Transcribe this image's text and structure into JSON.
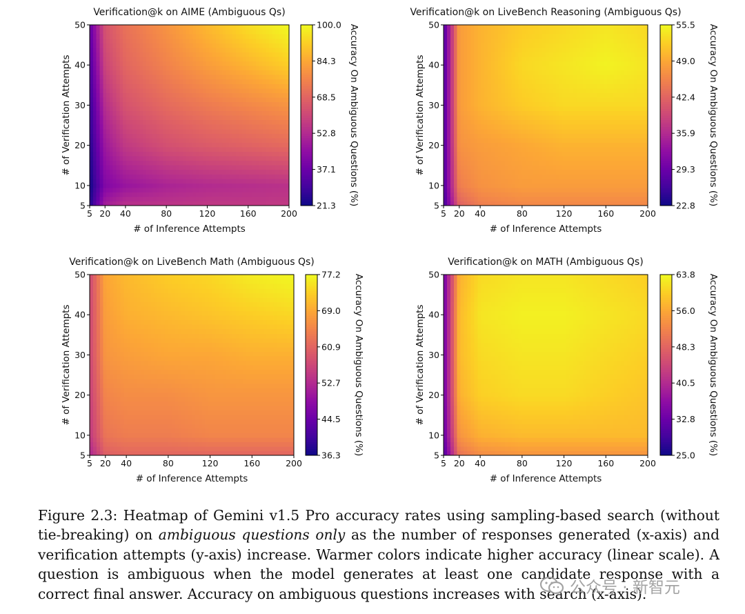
{
  "chart_data": [
    {
      "type": "heatmap",
      "title": "Verification@k on AIME (Ambiguous Qs)",
      "xlabel": "# of Inference Attempts",
      "ylabel": "# of Verification Attempts",
      "colorbar_label": "Accuracy On Ambiguous Questions (%)",
      "colormap": "plasma",
      "xlim": [
        5,
        200
      ],
      "ylim": [
        5,
        50
      ],
      "xticks": [
        5,
        20,
        40,
        80,
        120,
        160,
        200
      ],
      "yticks": [
        5,
        10,
        20,
        30,
        40,
        50
      ],
      "colorbar_ticks": [
        "21.3",
        "37.1",
        "52.8",
        "68.5",
        "84.3",
        "100.0"
      ],
      "vmin": 21.3,
      "vmax": 100.0,
      "x": [
        5,
        20,
        40,
        80,
        120,
        160,
        200
      ],
      "y": [
        5,
        10,
        20,
        30,
        40,
        50
      ],
      "z": [
        [
          24,
          50,
          55,
          56,
          57,
          57,
          57
        ],
        [
          22,
          42,
          47,
          51,
          53,
          54,
          55
        ],
        [
          25,
          48,
          57,
          63,
          66,
          68,
          70
        ],
        [
          28,
          54,
          64,
          70,
          74,
          77,
          80
        ],
        [
          32,
          60,
          69,
          76,
          82,
          87,
          92
        ],
        [
          36,
          64,
          72,
          80,
          88,
          95,
          100
        ]
      ]
    },
    {
      "type": "heatmap",
      "title": "Verification@k on LiveBench Reasoning (Ambiguous Qs)",
      "xlabel": "# of Inference Attempts",
      "ylabel": "# of Verification Attempts",
      "colorbar_label": "Accuracy On Ambiguous Questions (%)",
      "colormap": "plasma",
      "xlim": [
        5,
        200
      ],
      "ylim": [
        5,
        50
      ],
      "xticks": [
        5,
        20,
        40,
        80,
        120,
        160,
        200
      ],
      "yticks": [
        5,
        10,
        20,
        30,
        40,
        50
      ],
      "colorbar_ticks": [
        "22.8",
        "29.3",
        "35.9",
        "42.4",
        "49.0",
        "55.5"
      ],
      "vmin": 22.8,
      "vmax": 55.5,
      "x": [
        5,
        20,
        40,
        80,
        120,
        160,
        200
      ],
      "y": [
        5,
        10,
        20,
        30,
        40,
        50
      ],
      "z": [
        [
          26,
          42,
          45,
          46,
          46,
          46,
          46
        ],
        [
          27,
          45,
          47,
          48,
          48,
          48,
          48
        ],
        [
          27,
          47,
          48,
          49,
          50,
          50,
          50
        ],
        [
          27,
          48,
          50,
          52,
          53,
          53,
          53
        ],
        [
          27,
          48,
          50,
          53,
          54,
          55,
          54
        ],
        [
          27,
          48,
          50,
          52,
          53,
          54,
          53
        ]
      ]
    },
    {
      "type": "heatmap",
      "title": "Verification@k on LiveBench Math (Ambiguous Qs)",
      "xlabel": "# of Inference Attempts",
      "ylabel": "# of Verification Attempts",
      "colorbar_label": "Accuracy On Ambiguous Questions (%)",
      "colormap": "plasma",
      "xlim": [
        5,
        200
      ],
      "ylim": [
        5,
        50
      ],
      "xticks": [
        5,
        20,
        40,
        80,
        120,
        160,
        200
      ],
      "yticks": [
        5,
        10,
        20,
        30,
        40,
        50
      ],
      "colorbar_ticks": [
        "36.3",
        "44.5",
        "52.7",
        "60.9",
        "69.0",
        "77.2"
      ],
      "vmin": 36.3,
      "vmax": 77.2,
      "x": [
        5,
        20,
        40,
        80,
        120,
        160,
        200
      ],
      "y": [
        5,
        10,
        20,
        30,
        40,
        50
      ],
      "z": [
        [
          52,
          60,
          61,
          61,
          61,
          61,
          61
        ],
        [
          55,
          63,
          64,
          64,
          65,
          65,
          65
        ],
        [
          56,
          65,
          66,
          66,
          67,
          67,
          67
        ],
        [
          57,
          67,
          68,
          69,
          69,
          70,
          70
        ],
        [
          57,
          68,
          70,
          71,
          72,
          73,
          74
        ],
        [
          57,
          69,
          71,
          73,
          74,
          76,
          77
        ]
      ]
    },
    {
      "type": "heatmap",
      "title": "Verification@k on MATH (Ambiguous Qs)",
      "xlabel": "# of Inference Attempts",
      "ylabel": "# of Verification Attempts",
      "colorbar_label": "Accuracy On Ambiguous Questions (%)",
      "colormap": "plasma",
      "xlim": [
        5,
        200
      ],
      "ylim": [
        5,
        50
      ],
      "xticks": [
        5,
        20,
        40,
        80,
        120,
        160,
        200
      ],
      "yticks": [
        5,
        10,
        20,
        30,
        40,
        50
      ],
      "colorbar_ticks": [
        "25.0",
        "32.8",
        "40.5",
        "48.3",
        "56.0",
        "63.8"
      ],
      "vmin": 25.0,
      "vmax": 63.8,
      "x": [
        5,
        20,
        40,
        80,
        120,
        160,
        200
      ],
      "y": [
        5,
        10,
        20,
        30,
        40,
        50
      ],
      "z": [
        [
          30,
          50,
          53,
          54,
          54,
          54,
          54
        ],
        [
          32,
          54,
          57,
          58,
          58,
          58,
          58
        ],
        [
          33,
          57,
          60,
          61,
          61,
          60,
          59
        ],
        [
          33,
          58,
          61,
          62,
          62,
          61,
          60
        ],
        [
          33,
          58,
          62,
          63,
          63,
          62,
          61
        ],
        [
          33,
          57,
          61,
          62,
          62,
          61,
          60
        ]
      ]
    }
  ],
  "caption": {
    "part1": "Figure 2.3: Heatmap of Gemini v1.5 Pro accuracy rates using sampling-based search (without tie-breaking) on ",
    "emphasis": "ambiguous questions only",
    "part2": " as the number of responses generated (x-axis) and verification attempts (y-axis) increase. Warmer colors indicate higher accuracy (linear scale). A question is ambiguous when the model generates at least one candidate response with a correct final answer. Accuracy on ambiguous questions increases with search (x-axis)."
  },
  "watermark": {
    "text": "公众号 · 新智元",
    "icon": "wechat-logo-icon"
  }
}
